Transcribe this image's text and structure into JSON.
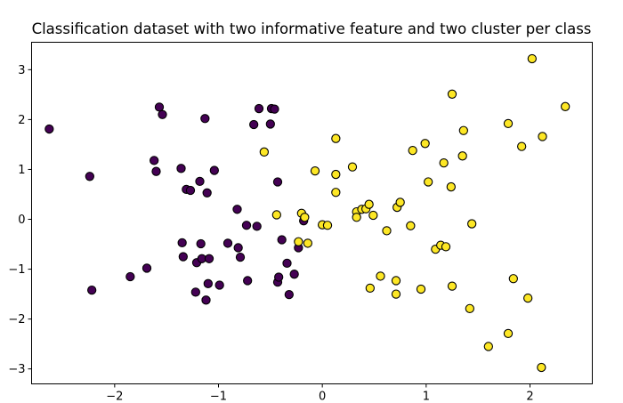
{
  "chart_data": {
    "type": "scatter",
    "title": "Classification dataset with two informative feature and two cluster per class",
    "xlabel": "",
    "ylabel": "",
    "xlim": [
      -2.8,
      2.6
    ],
    "ylim": [
      -3.3,
      3.55
    ],
    "xticks": [
      -2,
      -1,
      0,
      1,
      2
    ],
    "yticks": [
      -3,
      -2,
      -1,
      0,
      1,
      2,
      3
    ],
    "xtick_labels": [
      "−2",
      "−1",
      "0",
      "1",
      "2"
    ],
    "ytick_labels": [
      "−3",
      "−2",
      "−1",
      "0",
      "1",
      "2",
      "3"
    ],
    "grid": false,
    "legend": "none",
    "series": [
      {
        "color": "#440154",
        "points": [
          [
            -2.63,
            1.81
          ],
          [
            -2.24,
            0.86
          ],
          [
            -2.22,
            -1.42
          ],
          [
            -1.85,
            -1.15
          ],
          [
            -1.69,
            -0.98
          ],
          [
            -1.62,
            1.18
          ],
          [
            -1.6,
            0.96
          ],
          [
            -1.57,
            2.25
          ],
          [
            -1.54,
            2.1
          ],
          [
            -1.36,
            1.02
          ],
          [
            -1.35,
            -0.47
          ],
          [
            -1.34,
            -0.75
          ],
          [
            -1.31,
            0.6
          ],
          [
            -1.27,
            0.58
          ],
          [
            -1.22,
            -1.46
          ],
          [
            -1.21,
            -0.87
          ],
          [
            -1.18,
            0.76
          ],
          [
            -1.17,
            -0.49
          ],
          [
            -1.16,
            -0.79
          ],
          [
            -1.13,
            2.02
          ],
          [
            -1.12,
            -1.62
          ],
          [
            -1.11,
            0.53
          ],
          [
            -1.1,
            -1.29
          ],
          [
            -1.09,
            -0.79
          ],
          [
            -1.04,
            0.98
          ],
          [
            -0.99,
            -1.32
          ],
          [
            -0.91,
            -0.48
          ],
          [
            -0.82,
            0.2
          ],
          [
            -0.81,
            -0.57
          ],
          [
            -0.79,
            -0.76
          ],
          [
            -0.73,
            -0.12
          ],
          [
            -0.72,
            -1.23
          ],
          [
            -0.63,
            -0.14
          ],
          [
            -0.66,
            1.9
          ],
          [
            -0.61,
            2.22
          ],
          [
            -0.5,
            1.91
          ],
          [
            -0.49,
            2.22
          ],
          [
            -0.46,
            2.21
          ],
          [
            -0.43,
            0.75
          ],
          [
            -0.43,
            -1.26
          ],
          [
            -0.42,
            -1.16
          ],
          [
            -0.39,
            -0.41
          ],
          [
            -0.34,
            -0.88
          ],
          [
            -0.32,
            -1.51
          ],
          [
            -0.27,
            -1.1
          ],
          [
            -0.23,
            -0.57
          ],
          [
            -0.18,
            -0.03
          ]
        ]
      },
      {
        "color": "#fde725",
        "points": [
          [
            -0.56,
            1.35
          ],
          [
            -0.44,
            0.09
          ],
          [
            -0.23,
            -0.45
          ],
          [
            -0.2,
            0.12
          ],
          [
            -0.17,
            0.04
          ],
          [
            -0.14,
            -0.48
          ],
          [
            -0.07,
            0.97
          ],
          [
            0.0,
            -0.11
          ],
          [
            0.05,
            -0.12
          ],
          [
            0.13,
            1.62
          ],
          [
            0.13,
            0.54
          ],
          [
            0.13,
            0.9
          ],
          [
            0.29,
            1.05
          ],
          [
            0.33,
            0.15
          ],
          [
            0.33,
            0.04
          ],
          [
            0.38,
            0.2
          ],
          [
            0.42,
            0.21
          ],
          [
            0.45,
            0.3
          ],
          [
            0.46,
            -1.38
          ],
          [
            0.49,
            0.08
          ],
          [
            0.56,
            -1.14
          ],
          [
            0.62,
            -0.23
          ],
          [
            0.71,
            -1.5
          ],
          [
            0.71,
            -1.23
          ],
          [
            0.72,
            0.24
          ],
          [
            0.75,
            0.34
          ],
          [
            0.85,
            -0.13
          ],
          [
            0.87,
            1.38
          ],
          [
            0.95,
            -1.4
          ],
          [
            0.99,
            1.52
          ],
          [
            1.02,
            0.75
          ],
          [
            1.09,
            -0.6
          ],
          [
            1.14,
            -0.52
          ],
          [
            1.17,
            1.13
          ],
          [
            1.19,
            -0.55
          ],
          [
            1.25,
            2.51
          ],
          [
            1.24,
            0.65
          ],
          [
            1.25,
            -1.34
          ],
          [
            1.35,
            1.27
          ],
          [
            1.36,
            1.78
          ],
          [
            1.42,
            -1.79
          ],
          [
            1.44,
            -0.09
          ],
          [
            1.6,
            -2.55
          ],
          [
            1.79,
            -2.29
          ],
          [
            1.79,
            1.92
          ],
          [
            1.84,
            -1.19
          ],
          [
            1.92,
            1.46
          ],
          [
            1.98,
            -1.58
          ],
          [
            2.02,
            3.22
          ],
          [
            2.11,
            -2.97
          ],
          [
            2.12,
            1.66
          ],
          [
            2.34,
            2.26
          ]
        ]
      }
    ]
  }
}
